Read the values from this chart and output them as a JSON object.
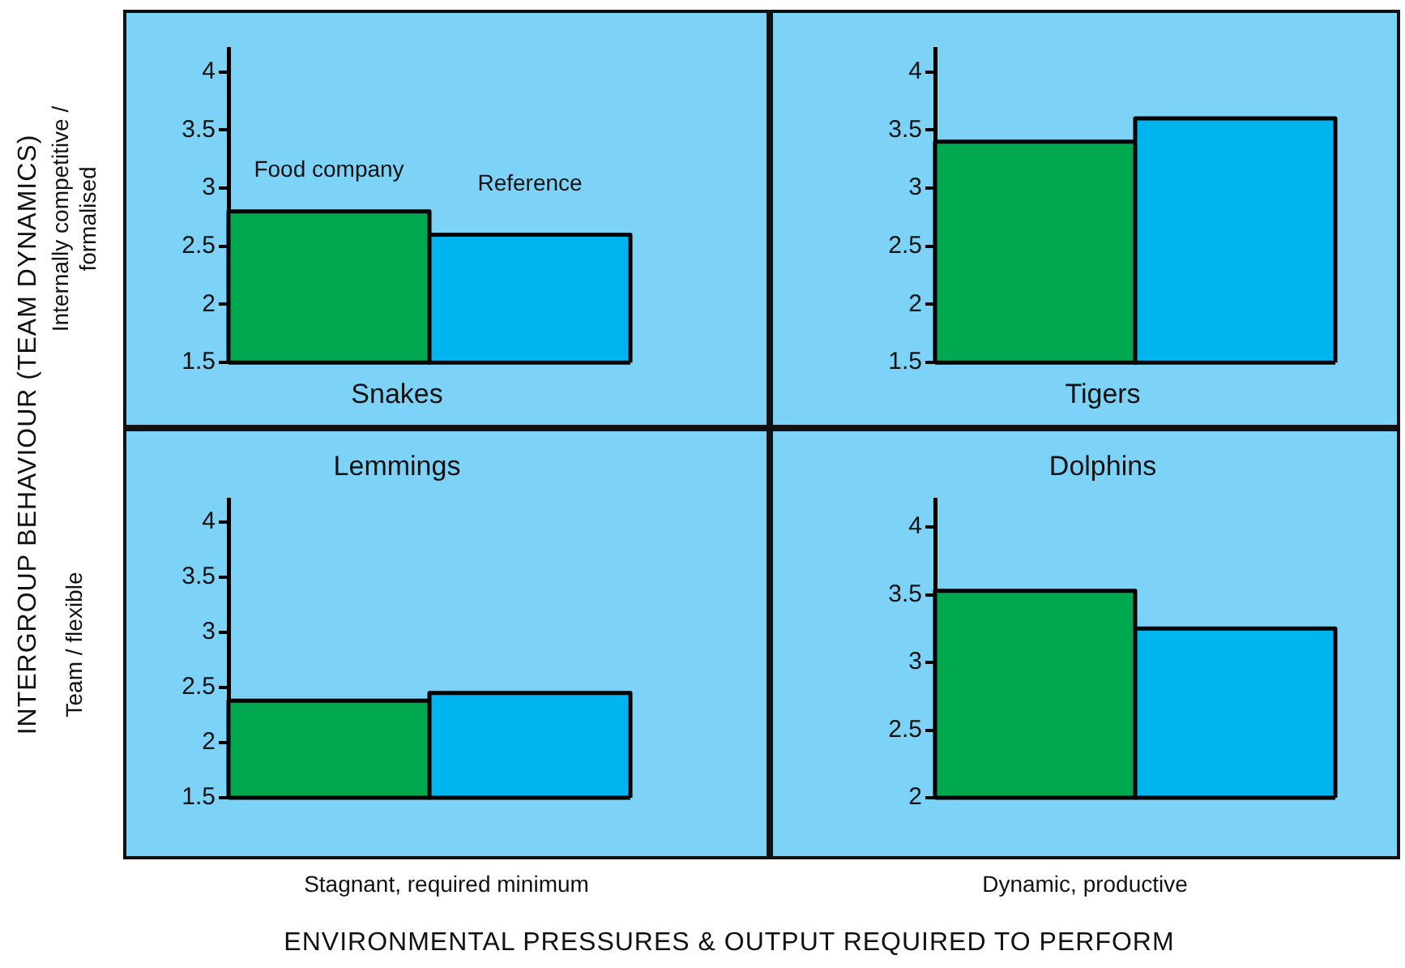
{
  "chart_data": [
    {
      "type": "bar",
      "title": "Snakes",
      "ylabel": "Internally competitive / formalised",
      "annotations": [
        "INTERGROUP BEHAVIOUR (TEAM DYNAMICS)"
      ],
      "categories": [
        null
      ],
      "ylim": [
        1.5,
        4.2
      ],
      "yticks": [
        1.5,
        2,
        2.5,
        3,
        3.5,
        4
      ],
      "series": [
        {
          "name": "Food company",
          "color": "#00a84f",
          "values": [
            2.8
          ]
        },
        {
          "name": "Reference",
          "color": "#00b5ef",
          "values": [
            2.6
          ]
        }
      ]
    },
    {
      "type": "bar",
      "title": "Tigers",
      "categories": [
        null
      ],
      "ylim": [
        1.5,
        4.2
      ],
      "yticks": [
        1.5,
        2,
        2.5,
        3,
        3.5,
        4
      ],
      "series": [
        {
          "color": "#00a84f",
          "values": [
            3.4
          ]
        },
        {
          "color": "#00b5ef",
          "values": [
            3.6
          ]
        }
      ]
    },
    {
      "type": "bar",
      "title": "Lemmings",
      "ylabel": "Team / flexible",
      "xlabel": "Stagnant, required minimum",
      "annotations": [
        "ENVIRONMENTAL PRESSURES & OUTPUT REQUIRED TO PERFORM"
      ],
      "categories": [
        null
      ],
      "ylim": [
        1.5,
        4.2
      ],
      "yticks": [
        1.5,
        2,
        2.5,
        3,
        3.5,
        4
      ],
      "series": [
        {
          "color": "#00a84f",
          "values": [
            2.38
          ]
        },
        {
          "color": "#00b5ef",
          "values": [
            2.45
          ]
        }
      ]
    },
    {
      "type": "bar",
      "title": "Dolphins",
      "xlabel": "Dynamic, productive",
      "categories": [
        null
      ],
      "ylim": [
        2,
        4.2
      ],
      "yticks": [
        2,
        2.5,
        3,
        3.5,
        4
      ],
      "series": [
        {
          "color": "#00a84f",
          "values": [
            3.53
          ]
        },
        {
          "color": "#00b5ef",
          "values": [
            3.25
          ]
        }
      ]
    }
  ]
}
